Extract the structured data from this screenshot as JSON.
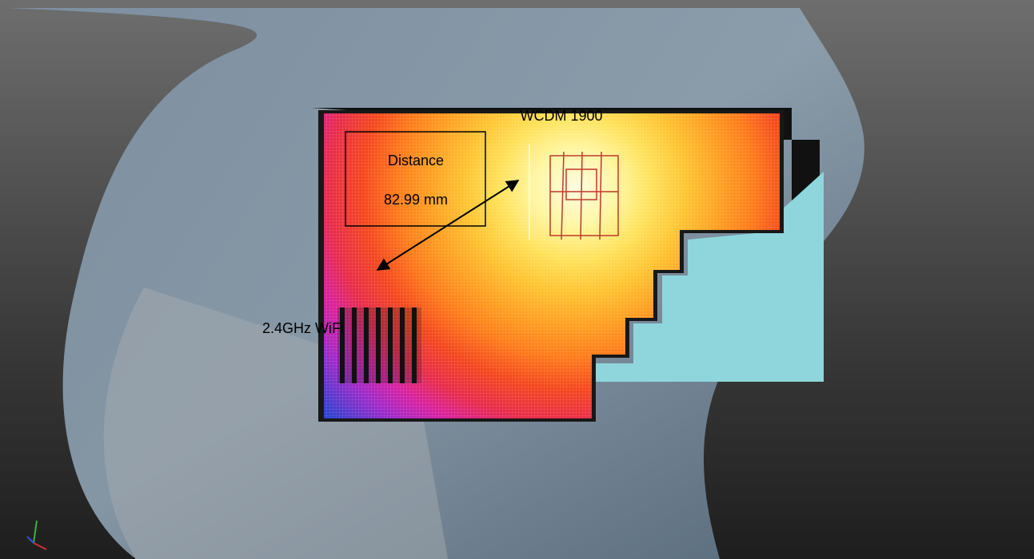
{
  "labels": {
    "antenna_1": "WCDM 1900",
    "distance_title": "Distance",
    "distance_value": "82.99 mm",
    "antenna_2": "2.4GHz WiFi"
  }
}
